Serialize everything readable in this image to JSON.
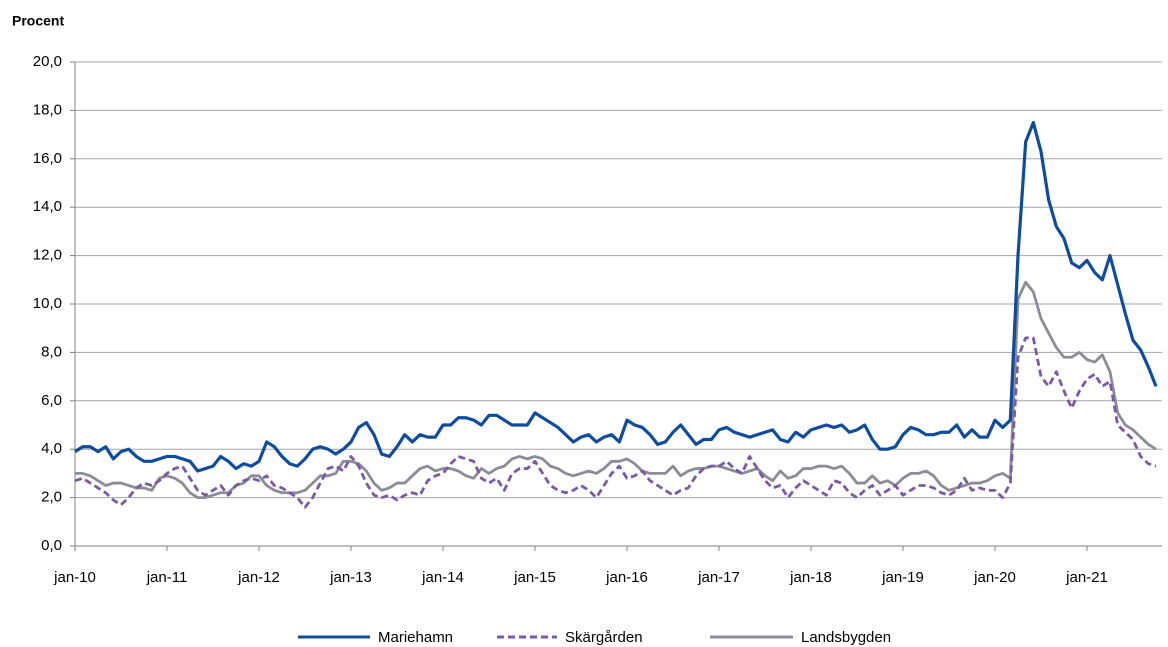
{
  "chart_data": {
    "type": "line",
    "y_label": "Procent",
    "categories": [
      "jan-10",
      null,
      null,
      null,
      null,
      null,
      null,
      null,
      null,
      null,
      null,
      null,
      "jan-11",
      null,
      null,
      null,
      null,
      null,
      null,
      null,
      null,
      null,
      null,
      null,
      "jan-12",
      null,
      null,
      null,
      null,
      null,
      null,
      null,
      null,
      null,
      null,
      null,
      "jan-13",
      null,
      null,
      null,
      null,
      null,
      null,
      null,
      null,
      null,
      null,
      null,
      "jan-14",
      null,
      null,
      null,
      null,
      null,
      null,
      null,
      null,
      null,
      null,
      null,
      "jan-15",
      null,
      null,
      null,
      null,
      null,
      null,
      null,
      null,
      null,
      null,
      null,
      "jan-16",
      null,
      null,
      null,
      null,
      null,
      null,
      null,
      null,
      null,
      null,
      null,
      "jan-17",
      null,
      null,
      null,
      null,
      null,
      null,
      null,
      null,
      null,
      null,
      null,
      "jan-18",
      null,
      null,
      null,
      null,
      null,
      null,
      null,
      null,
      null,
      null,
      null,
      "jan-19",
      null,
      null,
      null,
      null,
      null,
      null,
      null,
      null,
      null,
      null,
      null,
      "jan-20",
      null,
      null,
      null,
      null,
      null,
      null,
      null,
      null,
      null,
      null,
      null,
      "jan-21",
      null,
      null,
      null,
      null,
      null,
      null,
      null,
      null,
      null
    ],
    "series": [
      {
        "name": "Mariehamn",
        "color": "#0f4c9e",
        "style": "solid",
        "values": [
          3.9,
          4.1,
          4.1,
          3.9,
          4.1,
          3.6,
          3.9,
          4.0,
          3.7,
          3.5,
          3.5,
          3.6,
          3.7,
          3.7,
          3.6,
          3.5,
          3.1,
          3.2,
          3.3,
          3.7,
          3.5,
          3.2,
          3.4,
          3.3,
          3.5,
          4.3,
          4.1,
          3.7,
          3.4,
          3.3,
          3.6,
          4.0,
          4.1,
          4.0,
          3.8,
          4.0,
          4.3,
          4.9,
          5.1,
          4.6,
          3.8,
          3.7,
          4.1,
          4.6,
          4.3,
          4.6,
          4.5,
          4.5,
          5.0,
          5.0,
          5.3,
          5.3,
          5.2,
          5.0,
          5.4,
          5.4,
          5.2,
          5.0,
          5.0,
          5.0,
          5.5,
          5.3,
          5.1,
          4.9,
          4.6,
          4.3,
          4.5,
          4.6,
          4.3,
          4.5,
          4.6,
          4.3,
          5.2,
          5.0,
          4.9,
          4.6,
          4.2,
          4.3,
          4.7,
          5.0,
          4.6,
          4.2,
          4.4,
          4.4,
          4.8,
          4.9,
          4.7,
          4.6,
          4.5,
          4.6,
          4.7,
          4.8,
          4.4,
          4.3,
          4.7,
          4.5,
          4.8,
          4.9,
          5.0,
          4.9,
          5.0,
          4.7,
          4.8,
          5.0,
          4.4,
          4.0,
          4.0,
          4.1,
          4.6,
          4.9,
          4.8,
          4.6,
          4.6,
          4.7,
          4.7,
          5.0,
          4.5,
          4.8,
          4.5,
          4.5,
          5.2,
          4.9,
          5.2,
          12.0,
          16.7,
          17.5,
          16.3,
          14.3,
          13.2,
          12.7,
          11.7,
          11.5,
          11.8,
          11.3,
          11.0,
          12.0,
          10.8,
          9.6,
          8.5,
          8.1,
          7.4,
          6.6
        ]
      },
      {
        "name": "Skärgården",
        "color": "#7a5aa6",
        "style": "dashed",
        "values": [
          2.7,
          2.8,
          2.6,
          2.4,
          2.2,
          1.9,
          1.7,
          2.0,
          2.4,
          2.6,
          2.5,
          2.7,
          3.0,
          3.2,
          3.3,
          2.8,
          2.3,
          2.1,
          2.3,
          2.5,
          2.1,
          2.5,
          2.7,
          2.8,
          2.7,
          2.9,
          2.5,
          2.4,
          2.2,
          2.0,
          1.6,
          2.0,
          2.6,
          3.2,
          3.3,
          3.1,
          3.7,
          3.3,
          2.6,
          2.1,
          2.0,
          2.1,
          1.9,
          2.1,
          2.2,
          2.1,
          2.7,
          2.9,
          3.0,
          3.4,
          3.7,
          3.6,
          3.5,
          2.8,
          2.6,
          2.8,
          2.3,
          3.0,
          3.2,
          3.2,
          3.5,
          3.0,
          2.5,
          2.3,
          2.2,
          2.3,
          2.5,
          2.3,
          2.0,
          2.5,
          3.0,
          3.3,
          2.8,
          2.9,
          3.1,
          2.7,
          2.5,
          2.3,
          2.1,
          2.3,
          2.4,
          2.9,
          3.2,
          3.3,
          3.3,
          3.5,
          3.2,
          3.0,
          3.7,
          3.2,
          2.7,
          2.4,
          2.5,
          2.0,
          2.4,
          2.7,
          2.5,
          2.3,
          2.1,
          2.7,
          2.6,
          2.2,
          2.0,
          2.3,
          2.5,
          2.1,
          2.3,
          2.5,
          2.1,
          2.3,
          2.5,
          2.5,
          2.4,
          2.2,
          2.1,
          2.3,
          2.8,
          2.3,
          2.4,
          2.3,
          2.3,
          2.0,
          2.6,
          7.8,
          8.6,
          8.6,
          7.0,
          6.6,
          7.2,
          6.4,
          5.7,
          6.4,
          6.9,
          7.1,
          6.6,
          6.8,
          5.0,
          4.7,
          4.4,
          3.7,
          3.4,
          3.3
        ]
      },
      {
        "name": "Landsbygden",
        "color": "#8c8c96",
        "style": "solid",
        "values": [
          3.0,
          3.0,
          2.9,
          2.7,
          2.5,
          2.6,
          2.6,
          2.5,
          2.4,
          2.4,
          2.3,
          2.8,
          2.9,
          2.8,
          2.6,
          2.2,
          2.0,
          2.0,
          2.1,
          2.2,
          2.2,
          2.5,
          2.6,
          2.9,
          2.9,
          2.5,
          2.3,
          2.2,
          2.2,
          2.2,
          2.3,
          2.6,
          2.9,
          2.9,
          3.0,
          3.5,
          3.5,
          3.4,
          3.1,
          2.6,
          2.3,
          2.4,
          2.6,
          2.6,
          2.9,
          3.2,
          3.3,
          3.1,
          3.2,
          3.2,
          3.1,
          2.9,
          2.8,
          3.2,
          3.0,
          3.2,
          3.3,
          3.6,
          3.7,
          3.6,
          3.7,
          3.6,
          3.3,
          3.2,
          3.0,
          2.9,
          3.0,
          3.1,
          3.0,
          3.2,
          3.5,
          3.5,
          3.6,
          3.4,
          3.1,
          3.0,
          3.0,
          3.0,
          3.3,
          2.9,
          3.1,
          3.2,
          3.2,
          3.3,
          3.3,
          3.2,
          3.1,
          3.0,
          3.1,
          3.2,
          2.9,
          2.7,
          3.1,
          2.8,
          2.9,
          3.2,
          3.2,
          3.3,
          3.3,
          3.2,
          3.3,
          3.0,
          2.6,
          2.6,
          2.9,
          2.6,
          2.7,
          2.5,
          2.8,
          3.0,
          3.0,
          3.1,
          2.9,
          2.5,
          2.3,
          2.4,
          2.5,
          2.6,
          2.6,
          2.7,
          2.9,
          3.0,
          2.8,
          10.2,
          10.9,
          10.5,
          9.4,
          8.8,
          8.2,
          7.8,
          7.8,
          8.0,
          7.7,
          7.6,
          7.9,
          7.2,
          5.5,
          5.0,
          4.8,
          4.5,
          4.2,
          4.0
        ]
      }
    ],
    "ylim": [
      0,
      20
    ],
    "yticks": [
      {
        "value": 0,
        "label": "0,0"
      },
      {
        "value": 2,
        "label": "2,0"
      },
      {
        "value": 4,
        "label": "4,0"
      },
      {
        "value": 6,
        "label": "6,0"
      },
      {
        "value": 8,
        "label": "8,0"
      },
      {
        "value": 10,
        "label": "10,0"
      },
      {
        "value": 12,
        "label": "12,0"
      },
      {
        "value": 14,
        "label": "14,0"
      },
      {
        "value": 16,
        "label": "16,0"
      },
      {
        "value": 18,
        "label": "18,0"
      },
      {
        "value": 20,
        "label": "20,0"
      }
    ],
    "grid": true,
    "legend": "bottom"
  }
}
